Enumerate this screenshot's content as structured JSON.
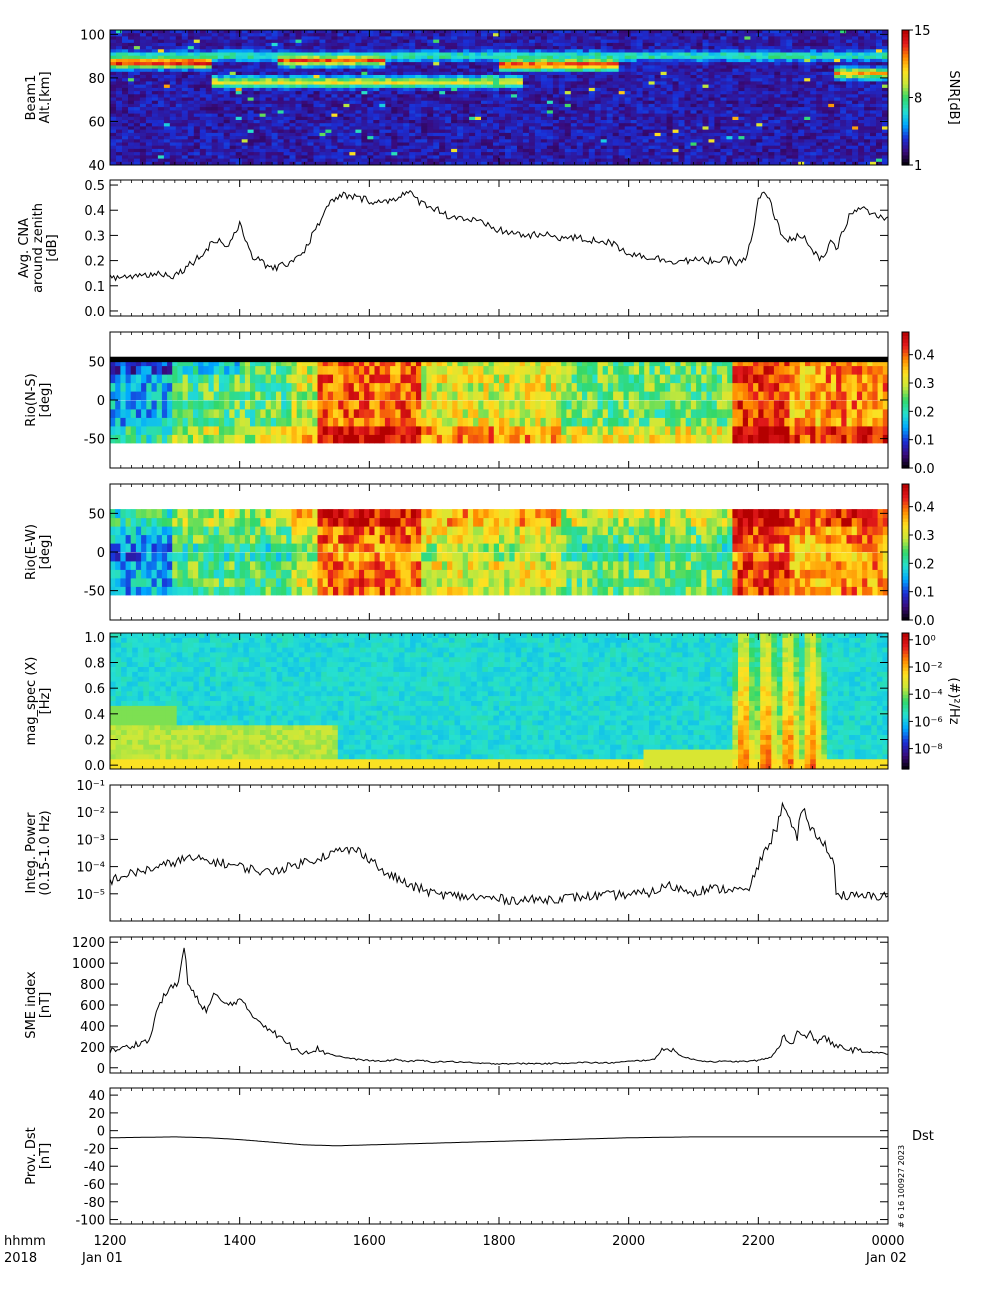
{
  "footer": {
    "row1_left": "hhmm",
    "row2_left": "2018",
    "start_date": "Jan 01",
    "end_date": "Jan 02",
    "dst_tag": "Dst",
    "side_note": "# 6 16 100927 2023"
  },
  "x_axis": {
    "ticks": [
      12,
      14,
      16,
      18,
      20,
      22,
      24
    ],
    "tick_labels": [
      "1200",
      "1400",
      "1600",
      "1800",
      "2000",
      "2200",
      "0000"
    ],
    "range": [
      12,
      24
    ],
    "unit": "hour UT"
  },
  "colors": {
    "colormap": [
      "#000000",
      "#3a0a7a",
      "#1a2fd6",
      "#00a8ff",
      "#26e0d0",
      "#32d86a",
      "#c8e83a",
      "#ffe020",
      "#ff8a00",
      "#e41a1c",
      "#b40000"
    ],
    "line": "#000000"
  },
  "chart_data": [
    {
      "type": "heatmap",
      "ylabel": [
        "Beam1",
        "Alt.[km]"
      ],
      "ylim": [
        40,
        102
      ],
      "yticks": [
        40,
        60,
        80,
        100
      ],
      "colorbar": {
        "label": "SNR[dB]",
        "range": [
          1,
          15
        ],
        "ticks": [
          1,
          8,
          15
        ],
        "tick_labels": [
          "1",
          "8",
          "15"
        ]
      },
      "features": [
        {
          "alt_km": 87,
          "from_hour": 12.0,
          "to_hour": 13.6,
          "snr_db": 15
        },
        {
          "alt_km": 88,
          "from_hour": 14.6,
          "to_hour": 16.2,
          "snr_db": 13
        },
        {
          "alt_km": 78,
          "from_hour": 13.6,
          "to_hour": 18.4,
          "snr_db": 11
        },
        {
          "alt_km": 86,
          "from_hour": 18.0,
          "to_hour": 19.8,
          "snr_db": 14
        },
        {
          "alt_km": 90,
          "from_hour": 12.0,
          "to_hour": 24.0,
          "snr_db": 8
        },
        {
          "alt_km": 82,
          "from_hour": 23.2,
          "to_hour": 24.0,
          "snr_db": 12
        }
      ]
    },
    {
      "type": "line",
      "ylabel": [
        "Avg. CNA",
        "around zenith",
        "[dB]"
      ],
      "ylim": [
        -0.02,
        0.52
      ],
      "yticks": [
        0.0,
        0.1,
        0.2,
        0.3,
        0.4,
        0.5
      ],
      "ytick_labels": [
        "0.0",
        "0.1",
        "0.2",
        "0.3",
        "0.4",
        "0.5"
      ],
      "x": [
        12.0,
        12.4,
        12.8,
        13.0,
        13.2,
        13.4,
        13.5,
        13.6,
        13.7,
        13.8,
        13.9,
        14.0,
        14.2,
        14.4,
        14.6,
        14.8,
        15.0,
        15.2,
        15.4,
        15.6,
        15.8,
        16.0,
        16.2,
        16.4,
        16.6,
        16.8,
        17.0,
        17.2,
        17.4,
        17.6,
        17.8,
        18.0,
        18.2,
        18.4,
        18.6,
        18.8,
        19.0,
        19.2,
        19.4,
        19.6,
        19.8,
        20.0,
        20.2,
        20.4,
        20.6,
        20.8,
        21.0,
        21.2,
        21.4,
        21.6,
        21.7,
        21.8,
        21.9,
        22.0,
        22.1,
        22.2,
        22.3,
        22.4,
        22.5,
        22.6,
        22.7,
        22.8,
        22.9,
        23.0,
        23.1,
        23.2,
        23.4,
        23.6,
        23.8,
        24.0
      ],
      "y": [
        0.13,
        0.14,
        0.15,
        0.14,
        0.18,
        0.22,
        0.25,
        0.28,
        0.28,
        0.25,
        0.3,
        0.34,
        0.22,
        0.18,
        0.17,
        0.2,
        0.24,
        0.34,
        0.43,
        0.46,
        0.45,
        0.44,
        0.43,
        0.45,
        0.47,
        0.43,
        0.41,
        0.38,
        0.37,
        0.36,
        0.34,
        0.32,
        0.31,
        0.3,
        0.3,
        0.3,
        0.29,
        0.29,
        0.28,
        0.28,
        0.26,
        0.23,
        0.22,
        0.21,
        0.2,
        0.2,
        0.2,
        0.2,
        0.2,
        0.2,
        0.19,
        0.21,
        0.28,
        0.44,
        0.47,
        0.42,
        0.34,
        0.29,
        0.28,
        0.3,
        0.3,
        0.24,
        0.22,
        0.2,
        0.28,
        0.24,
        0.38,
        0.41,
        0.38,
        0.36
      ]
    },
    {
      "type": "heatmap",
      "ylabel": [
        "Rio(N-S)",
        "[deg]"
      ],
      "ylim": [
        -88,
        88
      ],
      "yticks": [
        -50,
        0,
        50
      ],
      "colorbar": {
        "range": [
          0,
          0.48
        ],
        "ticks": [
          0.0,
          0.1,
          0.2,
          0.3,
          0.4
        ],
        "tick_labels": [
          "0.0",
          "0.1",
          "0.2",
          "0.3",
          "0.4"
        ]
      },
      "rows": 10,
      "row_centers_deg": [
        -50,
        -39,
        -28,
        -17,
        -6,
        6,
        17,
        28,
        39,
        50
      ]
    },
    {
      "type": "heatmap",
      "ylabel": [
        "Rio(E-W)",
        "[deg]"
      ],
      "ylim": [
        -88,
        88
      ],
      "yticks": [
        -50,
        0,
        50
      ],
      "colorbar": {
        "range": [
          0,
          0.48
        ],
        "ticks": [
          0.0,
          0.1,
          0.2,
          0.3,
          0.4
        ],
        "tick_labels": [
          "0.0",
          "0.1",
          "0.2",
          "0.3",
          "0.4"
        ]
      },
      "rows": 10,
      "row_centers_deg": [
        -50,
        -39,
        -28,
        -17,
        -6,
        6,
        17,
        28,
        39,
        50
      ]
    },
    {
      "type": "heatmap",
      "ylabel": [
        "mag_spec (X)",
        "[Hz]"
      ],
      "ylim": [
        -0.03,
        1.03
      ],
      "yticks": [
        0.0,
        0.2,
        0.4,
        0.6,
        0.8,
        1.0
      ],
      "ytick_labels": [
        "0.0",
        "0.2",
        "0.4",
        "0.6",
        "0.8",
        "1.0"
      ],
      "colorbar": {
        "label": "(#)²/Hz",
        "scale": "log",
        "range_exponent": [
          -9.5,
          0.5
        ],
        "tick_exponents": [
          0,
          -2,
          -4,
          -6,
          -8
        ],
        "tick_labels": [
          "10⁰",
          "10⁻²",
          "10⁻⁴",
          "10⁻⁶",
          "10⁻⁸"
        ]
      }
    },
    {
      "type": "line",
      "ylabel": [
        "Integ. Power",
        "(0.15-1.0 Hz)"
      ],
      "yscale": "log",
      "ylim": [
        1e-06,
        0.1
      ],
      "yticks": [
        1e-05,
        0.0001,
        0.001,
        0.01,
        0.1
      ],
      "ytick_labels": [
        "10⁻⁵",
        "10⁻⁴",
        "10⁻³",
        "10⁻²",
        "10⁻¹"
      ],
      "x": [
        12.0,
        12.4,
        12.8,
        13.2,
        13.6,
        14.0,
        14.4,
        14.8,
        15.2,
        15.4,
        15.6,
        15.8,
        16.0,
        16.2,
        16.6,
        17.0,
        17.4,
        17.8,
        18.2,
        18.6,
        19.0,
        19.4,
        19.8,
        20.2,
        20.4,
        20.6,
        20.8,
        21.0,
        21.2,
        21.4,
        21.6,
        21.8,
        21.9,
        22.0,
        22.1,
        22.2,
        22.3,
        22.4,
        22.5,
        22.6,
        22.7,
        22.8,
        22.9,
        23.0,
        23.1,
        23.2,
        23.4,
        23.6,
        23.8,
        24.0
      ],
      "y": [
        3e-05,
        6e-05,
        0.0001,
        0.0002,
        0.00015,
        0.0001,
        6e-05,
        0.0001,
        0.0002,
        0.0003,
        0.0004,
        0.0004,
        0.0002,
        6e-05,
        2e-05,
        1e-05,
        8e-06,
        7e-06,
        6e-06,
        6e-06,
        7e-06,
        8e-06,
        9e-06,
        1e-05,
        1.2e-05,
        2e-05,
        1.5e-05,
        1.2e-05,
        1.5e-05,
        1.5e-05,
        1.5e-05,
        1.2e-05,
        2e-05,
        0.0001,
        0.0003,
        0.001,
        0.003,
        0.02,
        0.003,
        0.001,
        0.01,
        0.003,
        0.001,
        0.0008,
        0.0003,
        1e-05,
        8e-06,
        8e-06,
        8e-06,
        9e-06
      ]
    },
    {
      "type": "line",
      "ylabel": [
        "SME index",
        "[nT]"
      ],
      "ylim": [
        -50,
        1250
      ],
      "yticks": [
        0,
        200,
        400,
        600,
        800,
        1000,
        1200
      ],
      "ytick_labels": [
        "0",
        "200",
        "400",
        "600",
        "800",
        "1000",
        "1200"
      ],
      "x": [
        12.0,
        12.3,
        12.5,
        12.6,
        12.75,
        12.9,
        13.05,
        13.15,
        13.2,
        13.3,
        13.4,
        13.5,
        13.6,
        13.8,
        14.0,
        14.2,
        14.4,
        14.6,
        14.8,
        15.0,
        15.2,
        15.4,
        15.6,
        15.8,
        16.0,
        16.2,
        16.4,
        16.6,
        16.8,
        17.0,
        17.2,
        17.4,
        17.6,
        17.8,
        18.0,
        18.2,
        18.4,
        18.6,
        18.8,
        19.0,
        19.2,
        19.4,
        19.6,
        19.8,
        20.0,
        20.2,
        20.4,
        20.55,
        20.7,
        20.85,
        21.0,
        21.2,
        21.4,
        21.6,
        21.8,
        22.0,
        22.2,
        22.4,
        22.5,
        22.6,
        22.7,
        22.8,
        22.9,
        23.0,
        23.2,
        23.4,
        23.6,
        23.8,
        24.0
      ],
      "y": [
        160,
        200,
        250,
        250,
        600,
        750,
        800,
        1180,
        800,
        700,
        600,
        550,
        700,
        600,
        650,
        500,
        400,
        300,
        200,
        150,
        180,
        130,
        100,
        80,
        70,
        60,
        80,
        60,
        70,
        55,
        60,
        55,
        45,
        40,
        40,
        40,
        40,
        40,
        40,
        45,
        50,
        50,
        45,
        50,
        60,
        70,
        80,
        200,
        160,
        100,
        80,
        60,
        60,
        60,
        60,
        70,
        100,
        300,
        200,
        350,
        280,
        330,
        250,
        300,
        200,
        180,
        150,
        150,
        130
      ]
    },
    {
      "type": "line",
      "ylabel": [
        "Prov. Dst",
        "[nT]"
      ],
      "ylim": [
        -105,
        48
      ],
      "yticks": [
        -100,
        -80,
        -60,
        -40,
        -20,
        0,
        20,
        40
      ],
      "ytick_labels": [
        "-100",
        "-80",
        "-60",
        "-40",
        "-20",
        "0",
        "20",
        "40"
      ],
      "x": [
        12.0,
        13.0,
        13.5,
        14.0,
        14.5,
        15.0,
        15.5,
        16.0,
        16.5,
        17.0,
        17.5,
        18.0,
        18.5,
        19.0,
        19.5,
        20.0,
        21.0,
        22.0,
        23.0,
        24.0
      ],
      "y": [
        -8,
        -7,
        -8,
        -10,
        -13,
        -16,
        -17,
        -16,
        -15,
        -14,
        -13,
        -12,
        -11,
        -10,
        -9,
        -8,
        -7,
        -7,
        -7,
        -7
      ]
    }
  ]
}
